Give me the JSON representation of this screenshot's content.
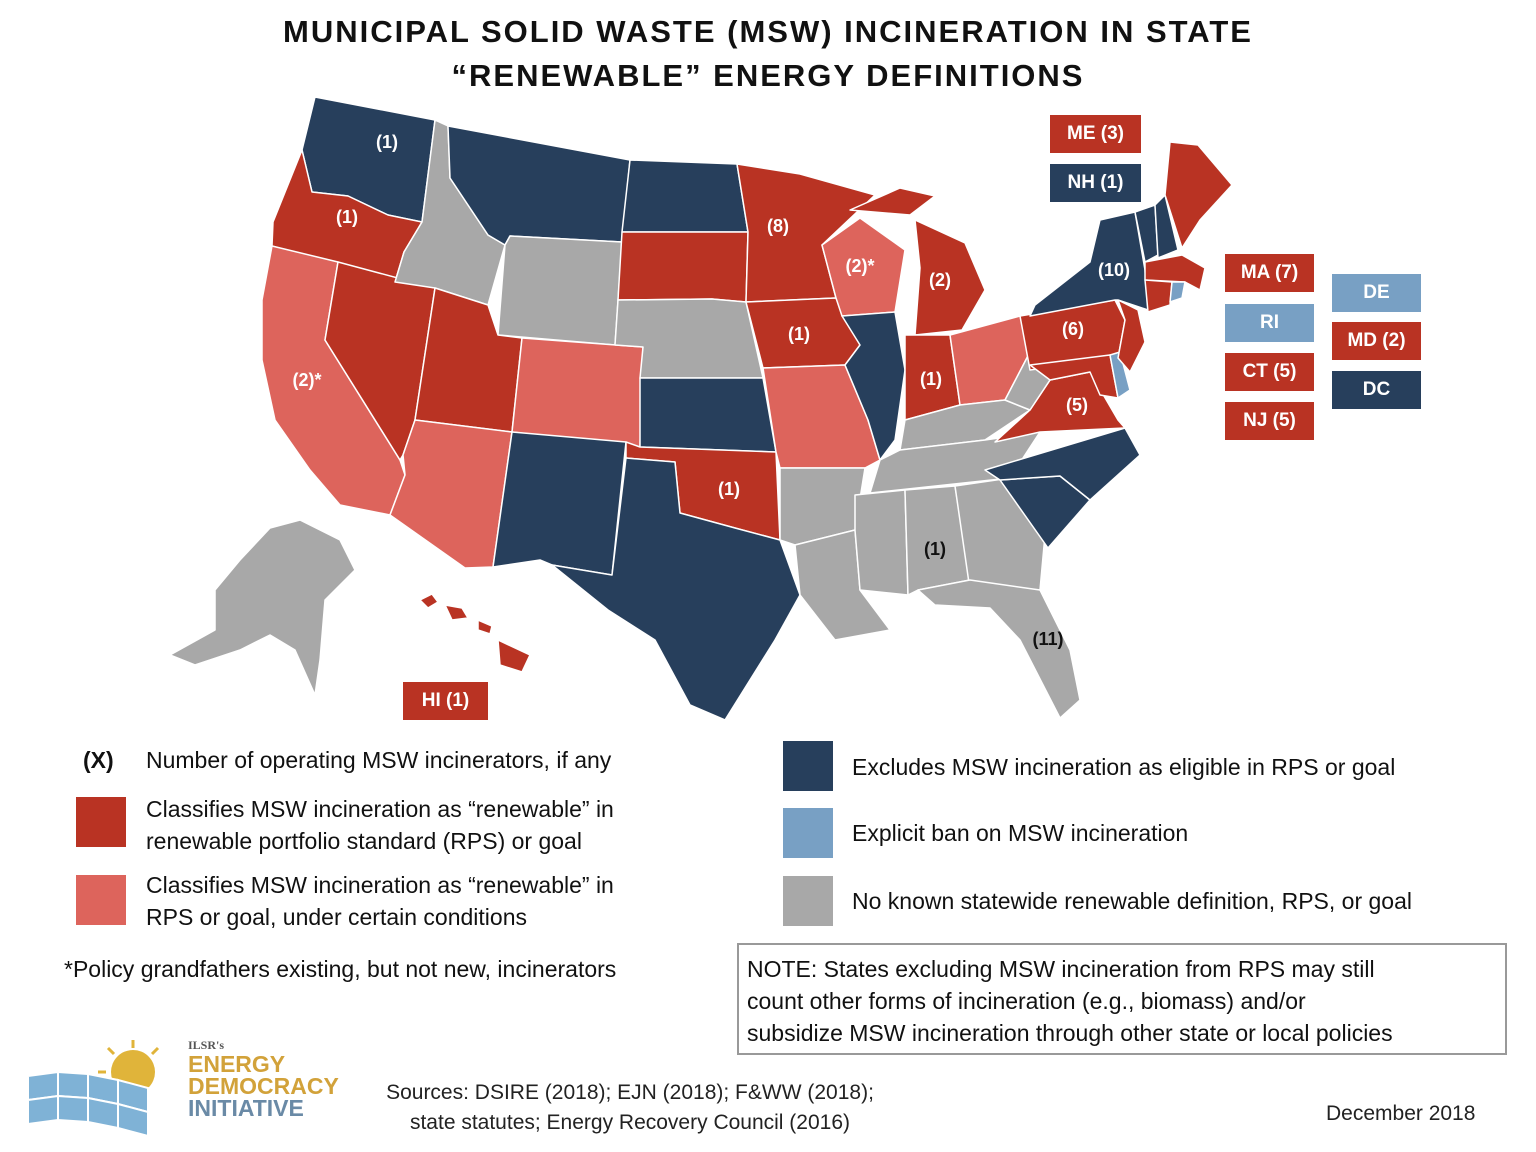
{
  "title": {
    "line1": "MUNICIPAL SOLID WASTE (MSW) INCINERATION IN STATE",
    "line2": "“RENEWABLE” ENERGY DEFINITIONS"
  },
  "colors": {
    "renewable": "#b93323",
    "renewable_conditional": "#dd645c",
    "excludes": "#273f5c",
    "ban": "#78a0c4",
    "no_definition": "#a8a8a8"
  },
  "map_counts": {
    "WA": "(1)",
    "OR": "(1)",
    "CA": "(2)*",
    "MN": "(8)",
    "WI": "(2)*",
    "MI": "(2)",
    "IA": "(1)",
    "IN": "(1)",
    "NY": "(10)",
    "PA": "(6)",
    "VA": "(5)",
    "OK": "(1)",
    "AL": "(1)",
    "FL": "(11)"
  },
  "state_boxes": {
    "me": "ME (3)",
    "nh": "NH (1)",
    "ma": "MA (7)",
    "ri": "RI",
    "ct": "CT (5)",
    "nj": "NJ (5)",
    "de": "DE",
    "md": "MD (2)",
    "dc": "DC",
    "hi": "HI (1)"
  },
  "legend": {
    "count_symbol": "(X)",
    "count_text": "Number of operating MSW incinerators, if any",
    "renewable_text_1": "Classifies MSW incineration as “renewable” in",
    "renewable_text_2": "renewable portfolio standard (RPS) or goal",
    "conditional_text_1": "Classifies MSW incineration as “renewable” in",
    "conditional_text_2": "RPS or goal, under certain conditions",
    "grandfather_note": "*Policy grandfathers existing, but not new, incinerators",
    "excludes_text": "Excludes MSW incineration as eligible in RPS or goal",
    "ban_text": "Explicit ban on MSW incineration",
    "no_definition_text": "No known statewide renewable definition, RPS, or goal"
  },
  "note": {
    "line1": "NOTE: States excluding MSW incineration from RPS may still",
    "line2": "count other forms of incineration (e.g., biomass) and/or",
    "line3": "subsidize MSW incineration through other state or local policies"
  },
  "sources": {
    "line1": "Sources: DSIRE (2018); EJN (2018); F&WW (2018);",
    "line2": "state statutes; Energy Recovery Council (2016)"
  },
  "date": "December 2018",
  "logo": {
    "small": "ILSR's",
    "line1": "ENERGY",
    "line2": "DEMOCRACY",
    "line3": "INITIATIVE"
  }
}
